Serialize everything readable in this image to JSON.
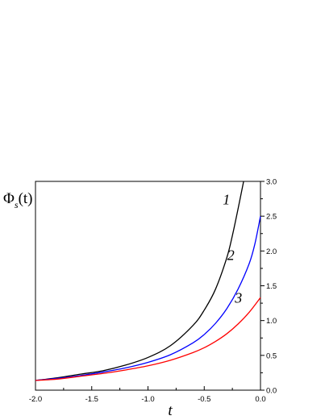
{
  "chart_data": {
    "type": "line",
    "xlabel": "t",
    "ylabel": "Φ_s(t)",
    "ylabel_parts": {
      "main": "Φ",
      "sub": "s",
      "arg": "(t)"
    },
    "xlim": [
      -2.0,
      0.0
    ],
    "ylim": [
      0.0,
      3.0
    ],
    "x_ticks": [
      "-2.0",
      "-1.5",
      "-1.0",
      "-0.5",
      "0.0"
    ],
    "y_ticks": [
      "0.0",
      "0.5",
      "1.0",
      "1.5",
      "2.0",
      "2.5",
      "3.0"
    ],
    "grid": false,
    "y_axis_side": "right",
    "series": [
      {
        "label": "1",
        "color": "#000000",
        "x": [
          -2.0,
          -1.8,
          -1.6,
          -1.4,
          -1.2,
          -1.0,
          -0.8,
          -0.6,
          -0.5,
          -0.4,
          -0.3,
          -0.25,
          -0.2,
          -0.15
        ],
        "y": [
          0.14,
          0.18,
          0.23,
          0.28,
          0.36,
          0.47,
          0.64,
          0.93,
          1.15,
          1.45,
          1.9,
          2.22,
          2.6,
          3.0
        ]
      },
      {
        "label": "2",
        "color": "#0000ff",
        "x": [
          -2.0,
          -1.8,
          -1.6,
          -1.4,
          -1.2,
          -1.0,
          -0.8,
          -0.6,
          -0.5,
          -0.4,
          -0.3,
          -0.2,
          -0.1,
          -0.05,
          0.0
        ],
        "y": [
          0.14,
          0.17,
          0.21,
          0.26,
          0.32,
          0.4,
          0.51,
          0.68,
          0.8,
          0.96,
          1.17,
          1.45,
          1.82,
          2.1,
          2.5
        ]
      },
      {
        "label": "3",
        "color": "#ff0000",
        "x": [
          -2.0,
          -1.8,
          -1.6,
          -1.4,
          -1.2,
          -1.0,
          -0.8,
          -0.6,
          -0.5,
          -0.4,
          -0.3,
          -0.2,
          -0.1,
          0.0
        ],
        "y": [
          0.14,
          0.16,
          0.2,
          0.24,
          0.29,
          0.35,
          0.43,
          0.54,
          0.61,
          0.7,
          0.81,
          0.95,
          1.12,
          1.33
        ]
      }
    ]
  }
}
